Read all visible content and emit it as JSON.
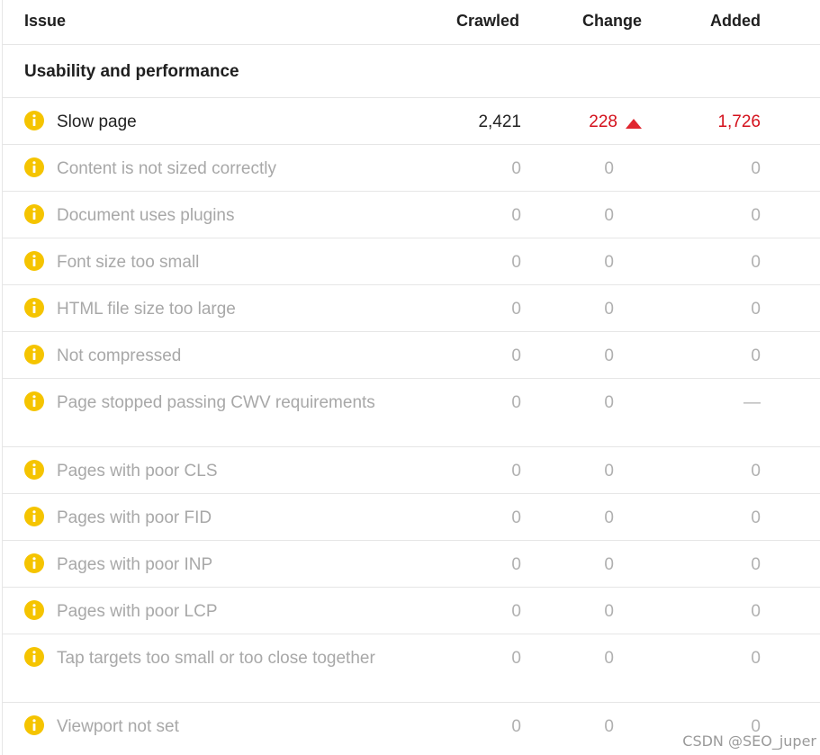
{
  "header": {
    "issue": "Issue",
    "crawled": "Crawled",
    "change": "Change",
    "added": "Added"
  },
  "section": {
    "title": "Usability and performance"
  },
  "colors": {
    "warning_icon": "#f5c400",
    "increase": "#d4111c",
    "inactive_text": "#a8a8a8"
  },
  "rows": [
    {
      "name": "Slow page",
      "crawled": "2,421",
      "change": "228",
      "change_direction": "up",
      "added": "1,726",
      "active": true
    },
    {
      "name": "Content is not sized correctly",
      "crawled": "0",
      "change": "0",
      "added": "0",
      "active": false
    },
    {
      "name": "Document uses plugins",
      "crawled": "0",
      "change": "0",
      "added": "0",
      "active": false
    },
    {
      "name": "Font size too small",
      "crawled": "0",
      "change": "0",
      "added": "0",
      "active": false
    },
    {
      "name": "HTML file size too large",
      "crawled": "0",
      "change": "0",
      "added": "0",
      "active": false
    },
    {
      "name": "Not compressed",
      "crawled": "0",
      "change": "0",
      "added": "0",
      "active": false
    },
    {
      "name": "Page stopped passing CWV requirements",
      "crawled": "0",
      "change": "0",
      "added": "—",
      "active": false
    },
    {
      "name": "Pages with poor CLS",
      "crawled": "0",
      "change": "0",
      "added": "0",
      "active": false
    },
    {
      "name": "Pages with poor FID",
      "crawled": "0",
      "change": "0",
      "added": "0",
      "active": false
    },
    {
      "name": "Pages with poor INP",
      "crawled": "0",
      "change": "0",
      "added": "0",
      "active": false
    },
    {
      "name": "Pages with poor LCP",
      "crawled": "0",
      "change": "0",
      "added": "0",
      "active": false
    },
    {
      "name": "Tap targets too small or too close together",
      "crawled": "0",
      "change": "0",
      "added": "0",
      "active": false
    },
    {
      "name": "Viewport not set",
      "crawled": "0",
      "change": "0",
      "added": "0",
      "active": false
    }
  ],
  "watermark": "CSDN @SEO_juper"
}
